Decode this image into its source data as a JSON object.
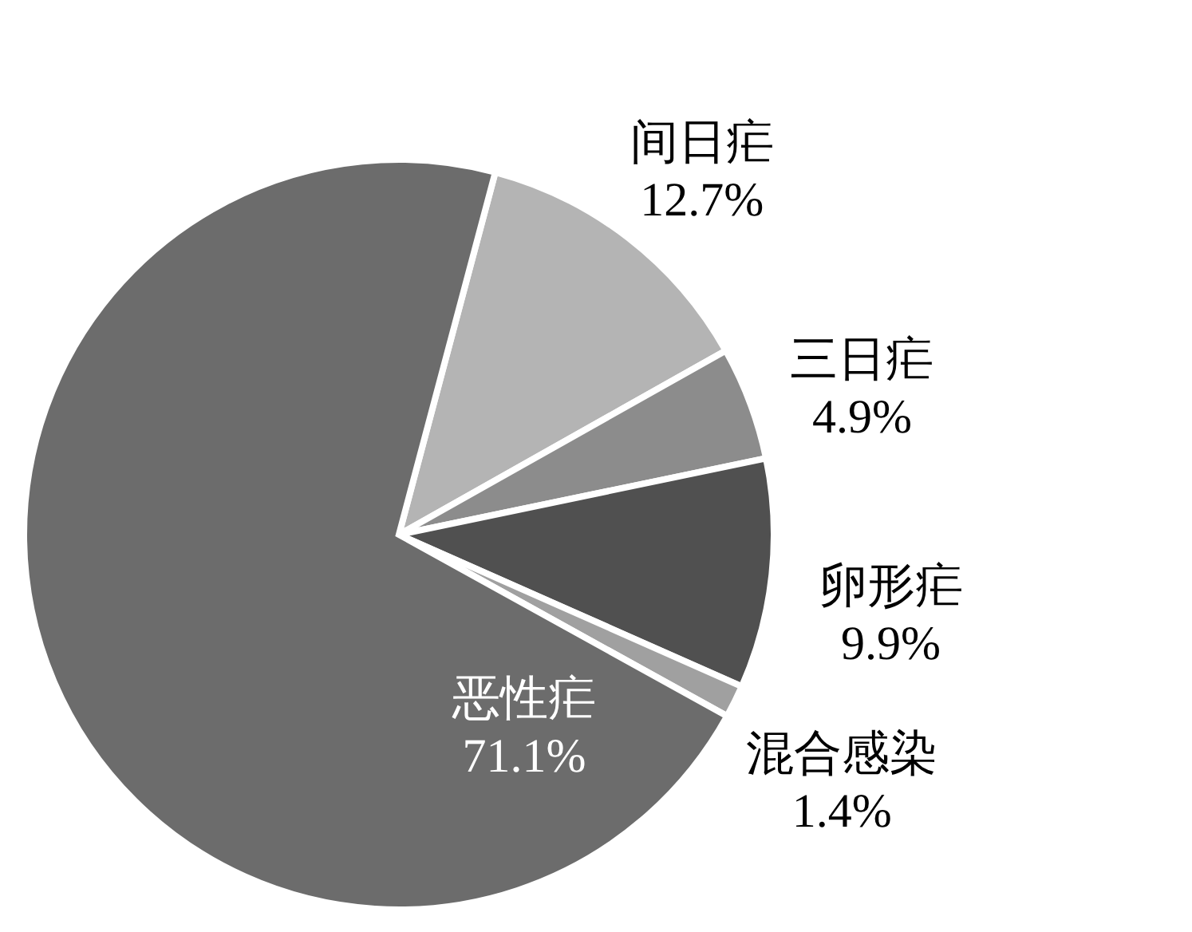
{
  "chart_data": {
    "type": "pie",
    "categories": [
      "间日疟",
      "三日疟",
      "卵形疟",
      "混合感染",
      "恶性疟"
    ],
    "values": [
      12.7,
      4.9,
      9.9,
      1.4,
      71.1
    ],
    "value_labels": [
      "12.7%",
      "4.9%",
      "9.9%",
      "1.4%",
      "71.1%"
    ],
    "colors": [
      "#b4b4b4",
      "#8c8c8c",
      "#505050",
      "#a0a0a0",
      "#6c6c6c"
    ]
  }
}
